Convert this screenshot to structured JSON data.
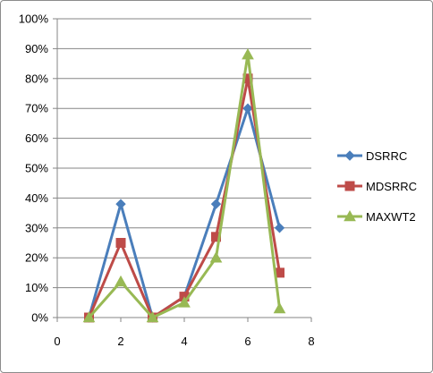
{
  "chart_data": {
    "type": "line",
    "x": [
      1,
      2,
      3,
      4,
      5,
      6,
      7
    ],
    "xlim": [
      0,
      8
    ],
    "xticks": [
      "0",
      "2",
      "4",
      "6",
      "8"
    ],
    "ylim": [
      0,
      1
    ],
    "yticks": [
      "0%",
      "10%",
      "20%",
      "30%",
      "40%",
      "50%",
      "60%",
      "70%",
      "80%",
      "90%",
      "100%"
    ],
    "grid": "horizontal",
    "legend": "right",
    "series": [
      {
        "name": "DSRRC",
        "color": "#4a7ebb",
        "marker": "diamond",
        "values": [
          0.0,
          0.38,
          0.0,
          0.07,
          0.38,
          0.7,
          0.3
        ]
      },
      {
        "name": "MDSRRC",
        "color": "#be4b48",
        "marker": "square",
        "values": [
          0.0,
          0.25,
          0.0,
          0.07,
          0.27,
          0.8,
          0.15
        ]
      },
      {
        "name": "MAXWT2",
        "color": "#98b954",
        "marker": "triangle",
        "values": [
          0.0,
          0.12,
          0.0,
          0.05,
          0.2,
          0.88,
          0.03
        ]
      }
    ]
  }
}
